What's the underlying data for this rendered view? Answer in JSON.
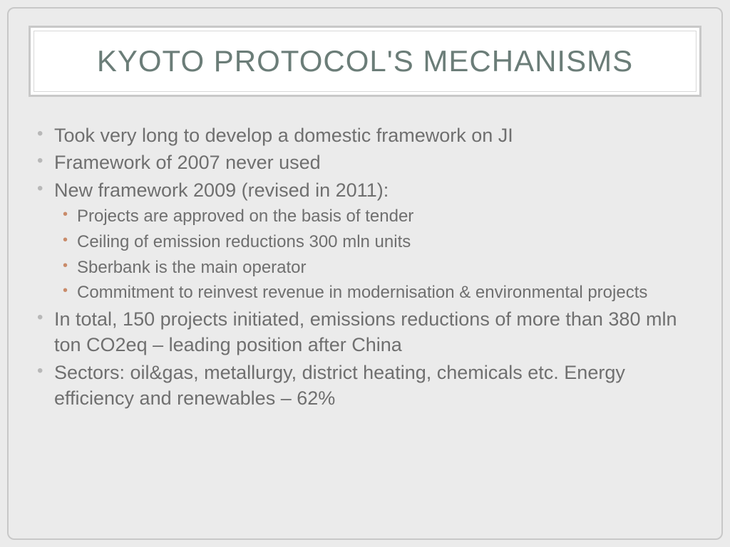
{
  "slide": {
    "title": "KYOTO PROTOCOL'S MECHANISMS",
    "title_color": "#6b7d78",
    "title_fontsize": 42,
    "background_color": "#ebebeb",
    "title_box_bg": "#ffffff",
    "title_box_border": "#c8c8c8",
    "body_text_color": "#6f6f6f",
    "bullet_level1_color": "#b8b8b8",
    "bullet_level2_color": "#c98b6a",
    "body_fontsize_level1": 27,
    "body_fontsize_level2": 24,
    "bullets": [
      {
        "text": "Took very long to develop a domestic framework on JI",
        "children": []
      },
      {
        "text": "Framework of 2007 never used",
        "children": []
      },
      {
        "text": "New framework 2009 (revised in 2011):",
        "children": [
          "Projects are approved on the basis of tender",
          "Ceiling of emission reductions 300 mln units",
          "Sberbank is the main operator",
          "Commitment to reinvest revenue in modernisation & environmental projects"
        ]
      },
      {
        "text": "In total, 150 projects initiated, emissions reductions of more than 380 mln ton CO2eq – leading position after China",
        "children": []
      },
      {
        "text": "Sectors: oil&gas, metallurgy, district heating, chemicals etc. Energy efficiency and renewables – 62%",
        "children": []
      }
    ]
  }
}
